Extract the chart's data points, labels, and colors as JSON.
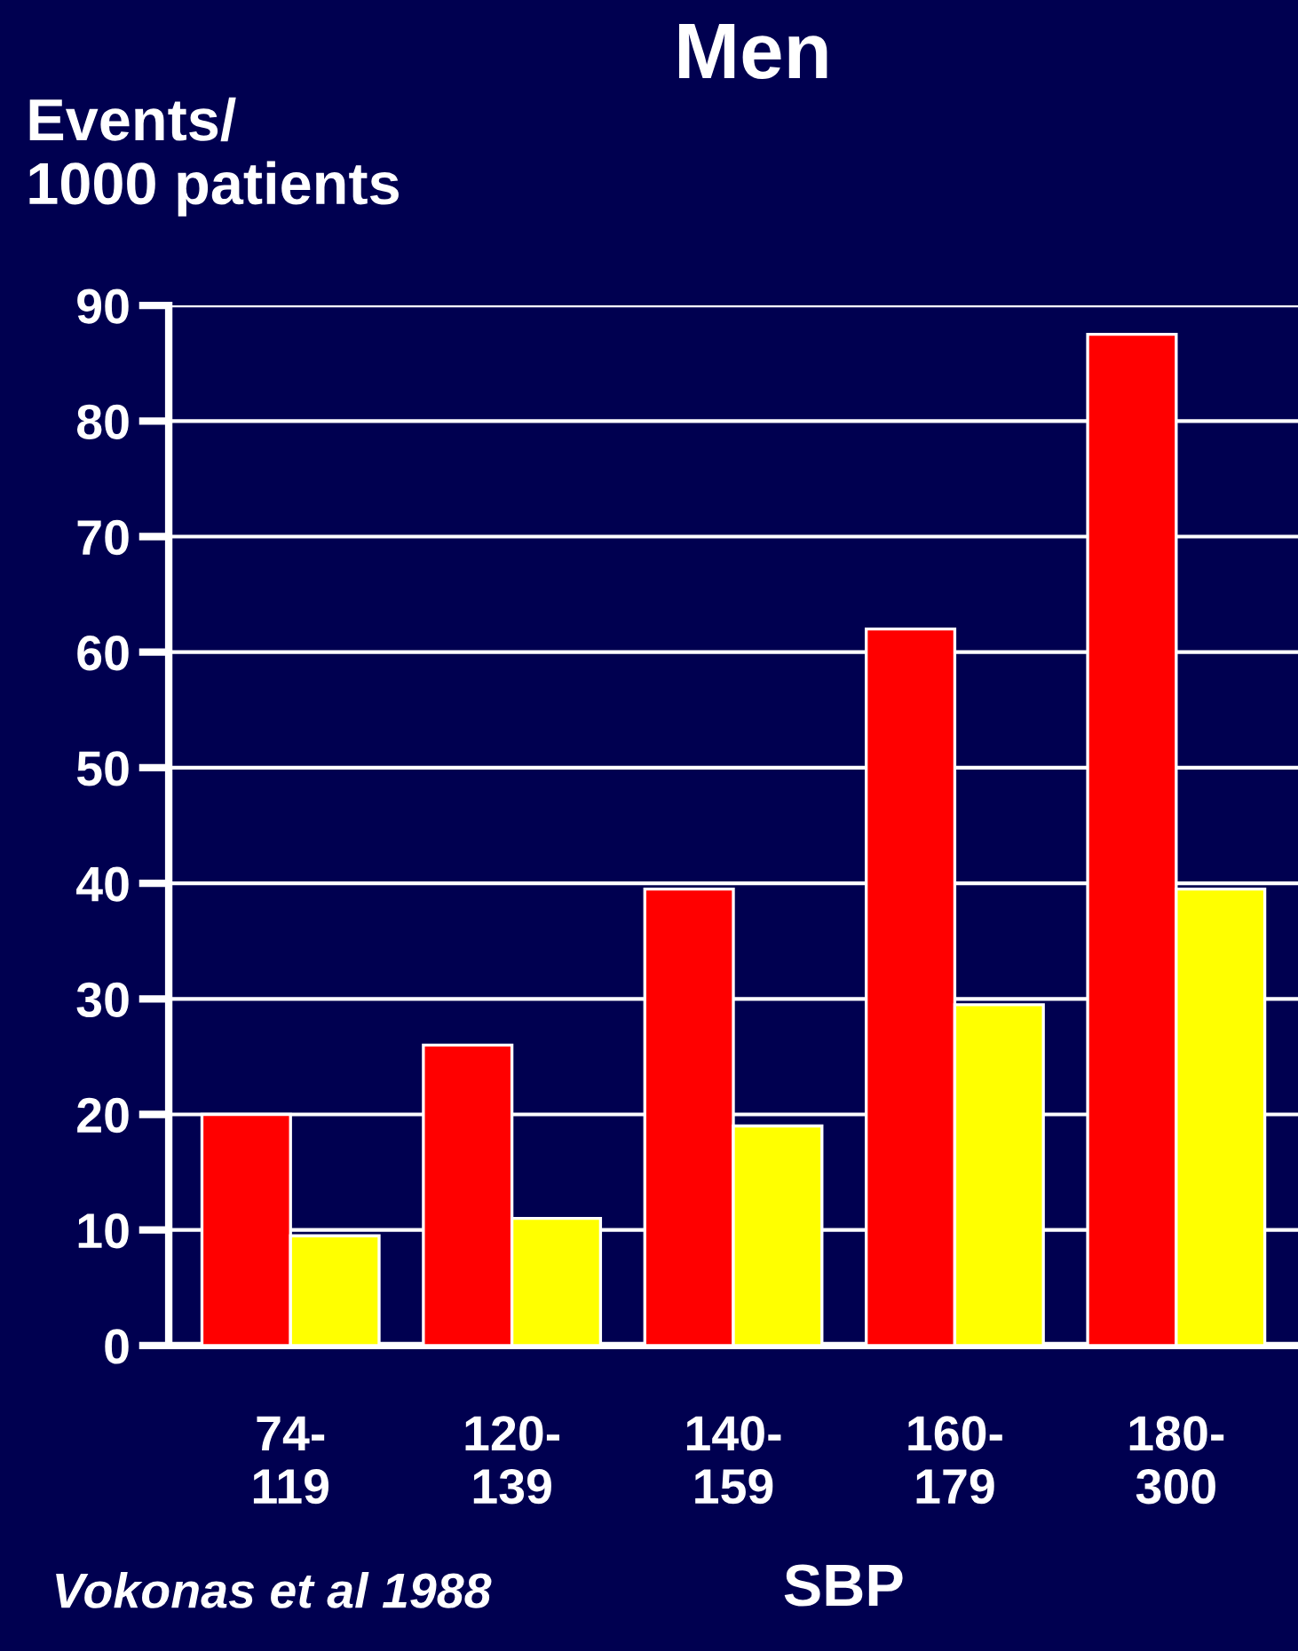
{
  "chart_data": {
    "type": "bar",
    "title": "Men",
    "ylabel": "Events/\n1000 patients",
    "xlabel": "SBP",
    "categories": [
      "74-\n119",
      "120-\n139",
      "140-\n159",
      "160-\n179",
      "180-\n300"
    ],
    "series": [
      {
        "color": "#ff0000",
        "values": [
          20,
          26,
          39.5,
          62,
          87.5
        ]
      },
      {
        "color": "#ffff00",
        "values": [
          9.5,
          11,
          19,
          29.5,
          39.5
        ]
      }
    ],
    "ylim": [
      0,
      90
    ],
    "yticks": [
      0,
      10,
      20,
      30,
      40,
      50,
      60,
      70,
      80,
      90
    ],
    "grid": "y",
    "annotations": [
      "Vokonas et al 1988"
    ]
  }
}
